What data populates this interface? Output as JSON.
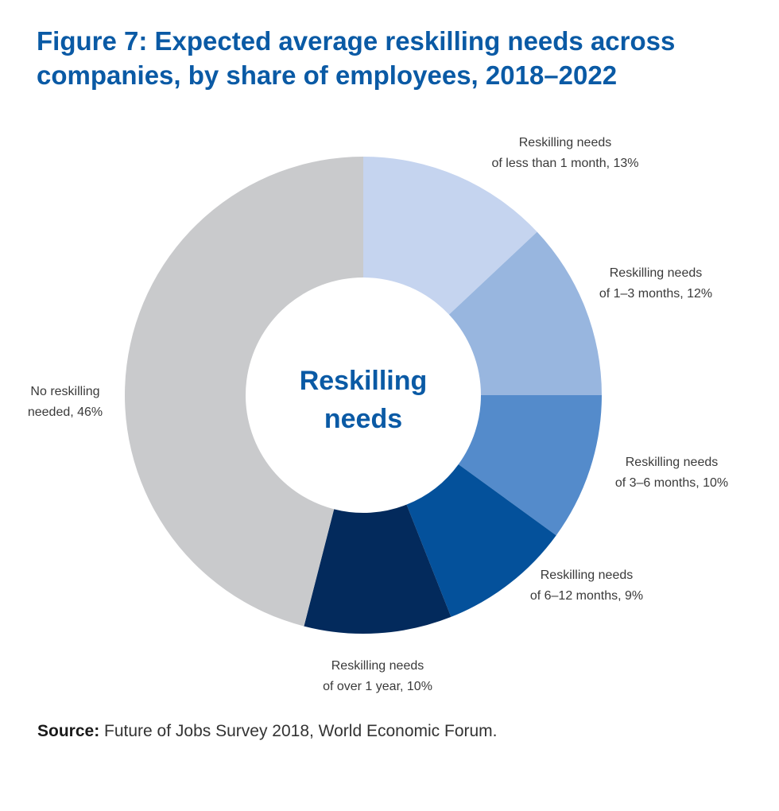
{
  "chart_data": {
    "type": "pie",
    "variant": "donut",
    "title_lines": [
      "Figure 7: Expected average reskilling needs across",
      "companies, by share of employees, 2018–2022"
    ],
    "center_label_lines": [
      "Reskilling",
      "needs"
    ],
    "slices": [
      {
        "name": "Reskilling needs of less than 1 month",
        "value": 13,
        "color": "#c5d4ef",
        "label_lines": [
          "Reskilling needs",
          "of less than 1 month, 13%"
        ]
      },
      {
        "name": "Reskilling needs of 1–3 months",
        "value": 12,
        "color": "#98b6df",
        "label_lines": [
          "Reskilling needs",
          "of 1–3 months, 12%"
        ]
      },
      {
        "name": "Reskilling needs of 3–6 months",
        "value": 10,
        "color": "#548bcb",
        "label_lines": [
          "Reskilling needs",
          "of 3–6 months, 10%"
        ]
      },
      {
        "name": "Reskilling needs of 6–12 months",
        "value": 9,
        "color": "#04519b",
        "label_lines": [
          "Reskilling needs",
          "of 6–12 months, 9%"
        ]
      },
      {
        "name": "Reskilling needs of over 1 year",
        "value": 10,
        "color": "#032a5c",
        "label_lines": [
          "Reskilling needs",
          "of over 1 year, 10%"
        ]
      },
      {
        "name": "No reskilling needed",
        "value": 46,
        "color": "#c9cacc",
        "label_lines": [
          "No reskilling",
          "needed, 46%"
        ]
      }
    ]
  },
  "source": {
    "label": "Source:",
    "text": " Future of Jobs Survey 2018, World Economic Forum."
  }
}
